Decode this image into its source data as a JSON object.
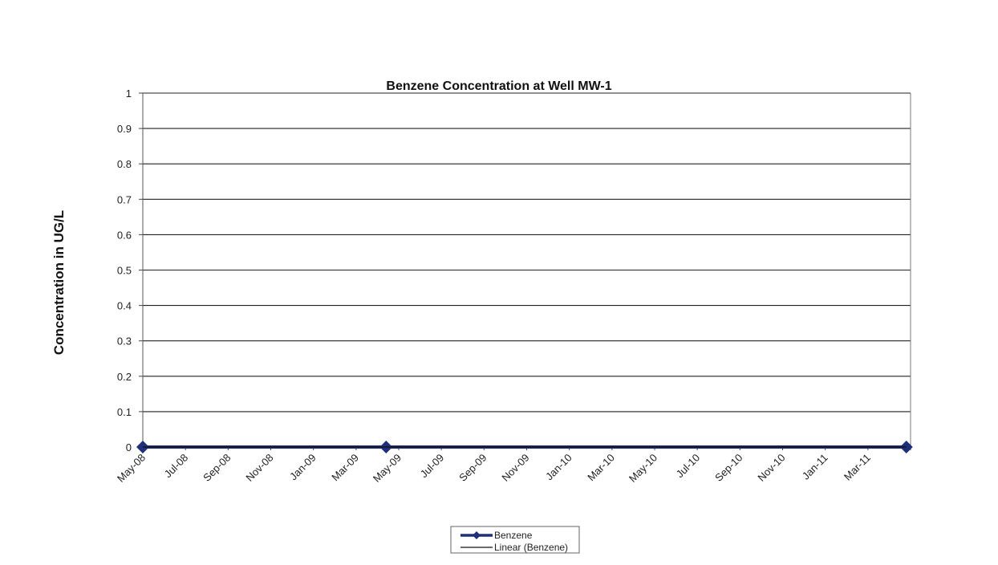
{
  "chart_data": {
    "type": "line",
    "title": "Benzene Concentration at Well MW-1",
    "ylabel": "Concentration in UG/L",
    "xlabel": "",
    "x_tick_labels": [
      "May-08",
      "Jul-08",
      "Sep-08",
      "Nov-08",
      "Jan-09",
      "Mar-09",
      "May-09",
      "Jul-09",
      "Sep-09",
      "Nov-09",
      "Jan-10",
      "Mar-10",
      "May-10",
      "Jul-10",
      "Sep-10",
      "Nov-10",
      "Jan-11",
      "Mar-11"
    ],
    "xlim": [
      "2008-05-01",
      "2011-05-01"
    ],
    "ylim": [
      0,
      1
    ],
    "y_ticks": [
      0,
      0.1,
      0.2,
      0.3,
      0.4,
      0.5,
      0.6,
      0.7,
      0.8,
      0.9,
      1
    ],
    "y_tick_labels": [
      "0",
      "0.1",
      "0.2",
      "0.3",
      "0.4",
      "0.5",
      "0.6",
      "0.7",
      "0.8",
      "0.9",
      "1"
    ],
    "grid": true,
    "legend_position": "bottom",
    "series": [
      {
        "name": "Benzene",
        "color": "#1f2f7a",
        "marker": "diamond",
        "points": [
          {
            "x": "2008-05-01",
            "y": 0
          },
          {
            "x": "2009-04-13",
            "y": 0
          },
          {
            "x": "2011-04-25",
            "y": 0
          }
        ]
      },
      {
        "name": "Linear (Benzene)",
        "color": "#111111",
        "marker": "none",
        "trendline": true,
        "points": [
          {
            "x": "2008-05-01",
            "y": 0
          },
          {
            "x": "2011-04-25",
            "y": 0
          }
        ]
      }
    ]
  }
}
